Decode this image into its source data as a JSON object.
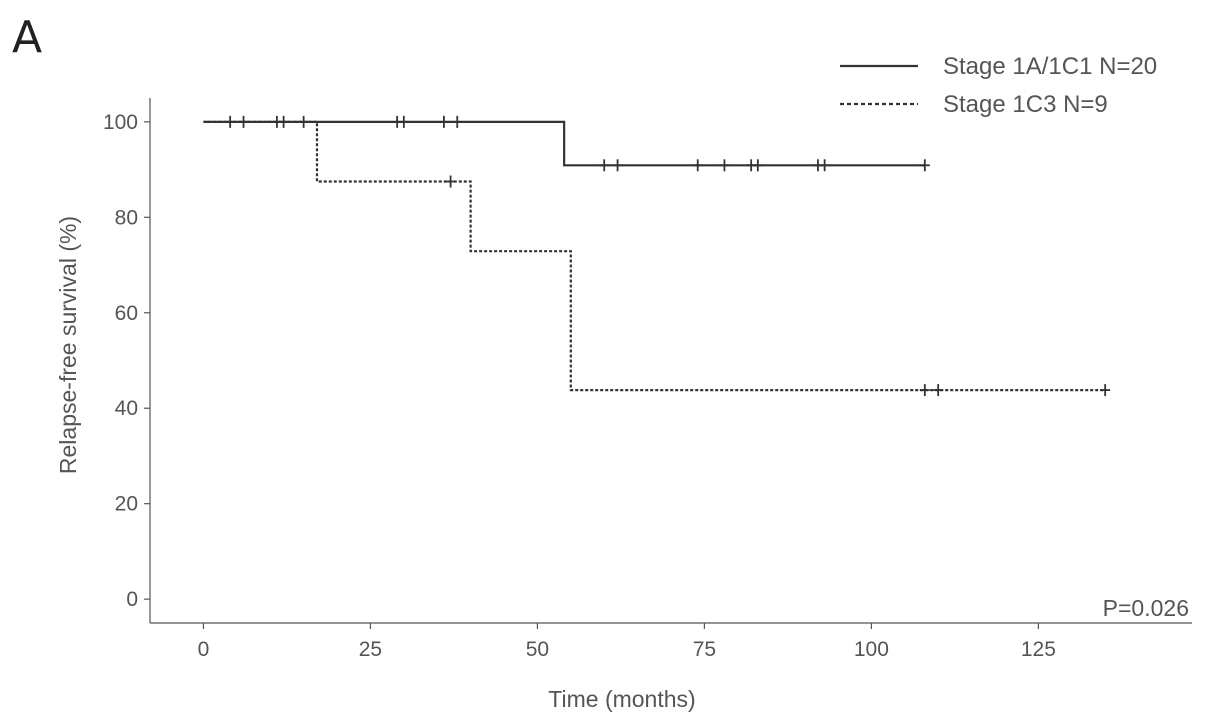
{
  "panel_letter": "A",
  "chart_data": {
    "type": "line",
    "subtype": "kaplan-meier",
    "title": "",
    "xlabel": "Time (months)",
    "ylabel": "Relapse-free survival (%)",
    "xlim": [
      -8,
      148
    ],
    "ylim": [
      -5,
      105
    ],
    "xticks": [
      0,
      25,
      50,
      75,
      100,
      125
    ],
    "yticks": [
      0,
      20,
      40,
      60,
      80,
      100
    ],
    "grid": false,
    "legend_position": "top-right",
    "annotation": "P=0.026",
    "series": [
      {
        "name": "Stage 1A/1C1 N=20",
        "line_style": "solid",
        "color": "#333333",
        "steps": [
          [
            0,
            100
          ],
          [
            54,
            100
          ],
          [
            54,
            90.9
          ],
          [
            108,
            90.9
          ]
        ],
        "censored": [
          [
            4,
            100
          ],
          [
            6,
            100
          ],
          [
            11,
            100
          ],
          [
            12,
            100
          ],
          [
            15,
            100
          ],
          [
            29,
            100
          ],
          [
            30,
            100
          ],
          [
            36,
            100
          ],
          [
            38,
            100
          ],
          [
            60,
            90.9
          ],
          [
            62,
            90.9
          ],
          [
            74,
            90.9
          ],
          [
            78,
            90.9
          ],
          [
            82,
            90.9
          ],
          [
            83,
            90.9
          ],
          [
            92,
            90.9
          ],
          [
            93,
            90.9
          ],
          [
            108,
            90.9
          ]
        ]
      },
      {
        "name": "Stage 1C3 N=9",
        "line_style": "dotted",
        "color": "#333333",
        "steps": [
          [
            0,
            100
          ],
          [
            17,
            100
          ],
          [
            17,
            87.5
          ],
          [
            40,
            87.5
          ],
          [
            40,
            72.9
          ],
          [
            55,
            72.9
          ],
          [
            55,
            43.8
          ],
          [
            135,
            43.8
          ]
        ],
        "censored": [
          [
            37,
            87.5
          ],
          [
            108,
            43.8
          ],
          [
            110,
            43.8
          ],
          [
            135,
            43.8
          ]
        ]
      }
    ]
  }
}
